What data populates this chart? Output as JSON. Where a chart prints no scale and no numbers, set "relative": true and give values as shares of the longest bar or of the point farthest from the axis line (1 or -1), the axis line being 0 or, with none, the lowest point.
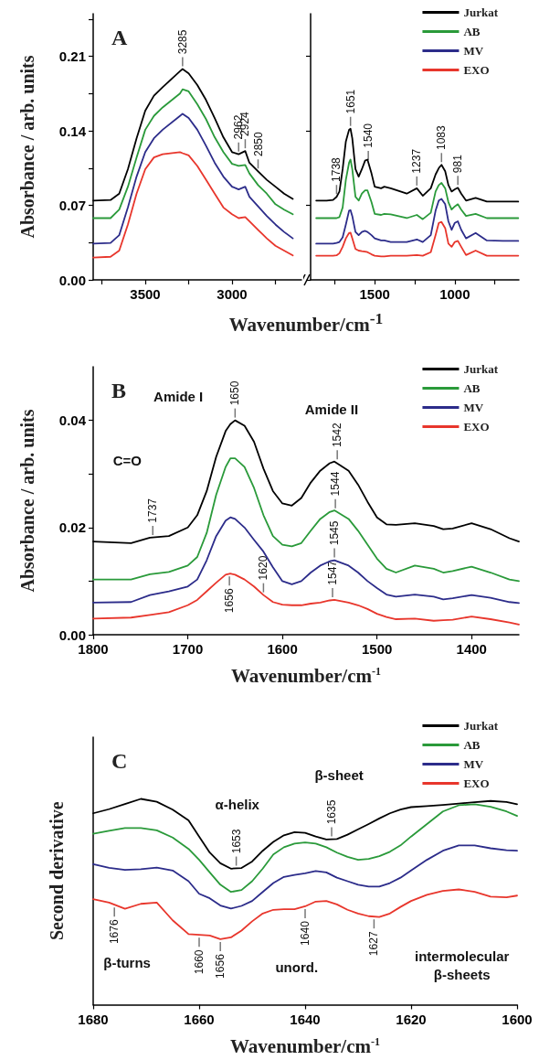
{
  "chart_data": [
    {
      "type": "line",
      "title": "A",
      "ylabel": "Absorbance / arb. units",
      "xlabel": "Wavenumber/cm$^{-1}$",
      "x": [
        3800,
        3700,
        3650,
        3600,
        3550,
        3500,
        3450,
        3400,
        3300,
        3285,
        3250,
        3200,
        3150,
        3100,
        3050,
        3000,
        2962,
        2924,
        2900,
        2850,
        2800,
        2750,
        2700,
        2650
      ],
      "series": [
        {
          "color": "#000000",
          "values": [
            0.0745,
            0.075,
            0.081,
            0.104,
            0.133,
            0.159,
            0.173,
            0.181,
            0.196,
            0.198,
            0.194,
            0.183,
            0.169,
            0.152,
            0.134,
            0.12,
            0.118,
            0.121,
            0.11,
            0.102,
            0.094,
            0.0875,
            0.081,
            0.076
          ]
        },
        {
          "color": "#2a9a3a",
          "values": [
            0.058,
            0.058,
            0.066,
            0.0875,
            0.115,
            0.141,
            0.154,
            0.162,
            0.175,
            0.179,
            0.177,
            0.165,
            0.151,
            0.134,
            0.12,
            0.109,
            0.107,
            0.108,
            0.1,
            0.089,
            0.081,
            0.071,
            0.066,
            0.0616
          ]
        },
        {
          "color": "#2c2c8a",
          "values": [
            0.034,
            0.0347,
            0.042,
            0.068,
            0.097,
            0.12,
            0.133,
            0.141,
            0.154,
            0.156,
            0.152,
            0.141,
            0.126,
            0.11,
            0.097,
            0.0875,
            0.085,
            0.0875,
            0.078,
            0.069,
            0.06,
            0.052,
            0.045,
            0.039
          ]
        },
        {
          "color": "#e8362c",
          "values": [
            0.021,
            0.0217,
            0.0275,
            0.052,
            0.081,
            0.104,
            0.115,
            0.118,
            0.12,
            0.119,
            0.117,
            0.107,
            0.094,
            0.081,
            0.068,
            0.0616,
            0.058,
            0.059,
            0.055,
            0.047,
            0.039,
            0.032,
            0.0275,
            0.023
          ]
        }
      ],
      "xlim": [
        3800,
        2600
      ],
      "xticks": [
        {
          "value": 3750,
          "label": null
        },
        3500,
        {
          "value": 3250,
          "label": null
        },
        3000,
        {
          "value": 2750,
          "label": null
        }
      ],
      "ylim": [
        0,
        0.25
      ],
      "yticks": [
        {
          "value": 0,
          "label": "0.00"
        },
        {
          "value": 0.035,
          "label": null
        },
        {
          "value": 0.07,
          "label": "0.07"
        },
        {
          "value": 0.105,
          "label": null
        },
        {
          "value": 0.14,
          "label": "0.14"
        },
        {
          "value": 0.175,
          "label": null
        },
        {
          "value": 0.21,
          "label": "0.21"
        },
        {
          "value": 0.245,
          "label": null
        }
      ],
      "annotations": [
        {
          "text": "3285",
          "x": 3285,
          "y": 0.198
        },
        {
          "text": "2962",
          "x": 2962,
          "y": 0.118
        },
        {
          "text": "2924",
          "x": 2924,
          "y": 0.121
        },
        {
          "text": "2850",
          "x": 2850,
          "y": 0.102
        }
      ]
    },
    {
      "type": "line",
      "x": [
        1865,
        1800,
        1760,
        1738,
        1720,
        1700,
        1680,
        1660,
        1651,
        1640,
        1620,
        1600,
        1580,
        1560,
        1545,
        1520,
        1500,
        1460,
        1440,
        1400,
        1300,
        1237,
        1200,
        1150,
        1120,
        1100,
        1083,
        1060,
        1040,
        1020,
        1000,
        981,
        960,
        930,
        870,
        800,
        700,
        604
      ],
      "series": [
        {
          "name": "Jurkat",
          "color": "#000000",
          "values": [
            0.0745,
            0.0745,
            0.075,
            0.078,
            0.083,
            0.104,
            0.13,
            0.141,
            0.142,
            0.133,
            0.104,
            0.097,
            0.104,
            0.112,
            0.113,
            0.1,
            0.0875,
            0.086,
            0.0875,
            0.086,
            0.081,
            0.086,
            0.079,
            0.086,
            0.099,
            0.105,
            0.108,
            0.102,
            0.089,
            0.083,
            0.085,
            0.0865,
            0.081,
            0.0745,
            0.077,
            0.0735,
            0.0735,
            0.0735
          ]
        },
        {
          "name": "AB",
          "color": "#2a9a3a",
          "values": [
            0.058,
            0.058,
            0.058,
            0.058,
            0.059,
            0.068,
            0.094,
            0.11,
            0.113,
            0.104,
            0.078,
            0.0745,
            0.081,
            0.084,
            0.084,
            0.073,
            0.062,
            0.061,
            0.062,
            0.0616,
            0.058,
            0.061,
            0.057,
            0.063,
            0.083,
            0.089,
            0.091,
            0.086,
            0.073,
            0.066,
            0.069,
            0.071,
            0.066,
            0.06,
            0.062,
            0.058,
            0.058,
            0.058
          ]
        },
        {
          "name": "MV",
          "color": "#2c2c8a",
          "values": [
            0.034,
            0.034,
            0.034,
            0.0347,
            0.0356,
            0.04,
            0.052,
            0.065,
            0.0655,
            0.06,
            0.045,
            0.042,
            0.045,
            0.046,
            0.045,
            0.042,
            0.039,
            0.037,
            0.037,
            0.0356,
            0.0356,
            0.038,
            0.0356,
            0.042,
            0.065,
            0.0745,
            0.076,
            0.071,
            0.055,
            0.047,
            0.0535,
            0.055,
            0.047,
            0.039,
            0.044,
            0.037,
            0.0366,
            0.0366
          ]
        },
        {
          "name": "EXO",
          "color": "#e8362c",
          "values": [
            0.0227,
            0.0227,
            0.0227,
            0.023,
            0.025,
            0.031,
            0.039,
            0.044,
            0.0444,
            0.039,
            0.029,
            0.0275,
            0.027,
            0.0266,
            0.026,
            0.024,
            0.0227,
            0.022,
            0.022,
            0.0227,
            0.0227,
            0.0233,
            0.0227,
            0.026,
            0.042,
            0.0535,
            0.0544,
            0.0486,
            0.034,
            0.031,
            0.0356,
            0.0366,
            0.031,
            0.0233,
            0.0275,
            0.0227,
            0.0227,
            0.0227
          ]
        }
      ],
      "xlim": [
        1900,
        600
      ],
      "xticks": [
        {
          "value": 1750,
          "label": null
        },
        1500,
        {
          "value": 1250,
          "label": null
        },
        1000,
        {
          "value": 750,
          "label": null
        }
      ],
      "ylim": [
        0,
        0.25
      ],
      "yticks": [
        {
          "value": 0,
          "label": null
        },
        {
          "value": 0.07,
          "label": null
        },
        {
          "value": 0.14,
          "label": null
        },
        {
          "value": 0.21,
          "label": null
        }
      ],
      "tick_labels": "x",
      "legend": "top right",
      "annotations": [
        {
          "text": "1738",
          "x": 1738,
          "y": 0.078
        },
        {
          "text": "1651",
          "x": 1651,
          "y": 0.142
        },
        {
          "text": "1540",
          "x": 1540,
          "y": 0.11
        },
        {
          "text": "1237",
          "x": 1237,
          "y": 0.086
        },
        {
          "text": "1083",
          "x": 1083,
          "y": 0.108
        },
        {
          "text": "981",
          "x": 981,
          "y": 0.0865
        }
      ]
    },
    {
      "type": "line",
      "title": "B",
      "ylabel": "Absorbance / arb. units",
      "xlabel": "Wavenumber/cm$^{-1}$",
      "x": [
        1800,
        1760,
        1740,
        1720,
        1700,
        1690,
        1680,
        1670,
        1660,
        1655,
        1650,
        1640,
        1630,
        1620,
        1610,
        1600,
        1590,
        1580,
        1570,
        1560,
        1550,
        1545,
        1530,
        1520,
        1510,
        1500,
        1490,
        1480,
        1460,
        1440,
        1430,
        1420,
        1400,
        1380,
        1360,
        1350
      ],
      "series": [
        {
          "name": "Jurkat",
          "color": "#000000",
          "values": [
            0.0174,
            0.0171,
            0.0181,
            0.0184,
            0.02,
            0.0223,
            0.0268,
            0.0332,
            0.038,
            0.0393,
            0.04,
            0.039,
            0.036,
            0.031,
            0.0268,
            0.0245,
            0.0241,
            0.0255,
            0.0284,
            0.0306,
            0.032,
            0.0323,
            0.0306,
            0.028,
            0.0248,
            0.0219,
            0.0206,
            0.0205,
            0.0208,
            0.0203,
            0.0197,
            0.0198,
            0.0208,
            0.0197,
            0.018,
            0.0174
          ]
        },
        {
          "name": "AB",
          "color": "#2a9a3a",
          "values": [
            0.0103,
            0.0103,
            0.0113,
            0.0117,
            0.0129,
            0.0145,
            0.019,
            0.0261,
            0.0313,
            0.0329,
            0.0329,
            0.0313,
            0.0274,
            0.0223,
            0.0184,
            0.0168,
            0.0165,
            0.0171,
            0.0194,
            0.0216,
            0.0229,
            0.0232,
            0.0216,
            0.0194,
            0.0168,
            0.0142,
            0.0123,
            0.0116,
            0.0129,
            0.0123,
            0.0116,
            0.0119,
            0.0127,
            0.0116,
            0.0103,
            0.01
          ]
        },
        {
          "name": "MV",
          "color": "#2c2c8a",
          "values": [
            0.006,
            0.0061,
            0.0074,
            0.0081,
            0.009,
            0.0103,
            0.0139,
            0.0184,
            0.0213,
            0.0219,
            0.0216,
            0.02,
            0.0177,
            0.0155,
            0.0126,
            0.01,
            0.0094,
            0.01,
            0.0116,
            0.0129,
            0.0137,
            0.0139,
            0.0129,
            0.0116,
            0.01,
            0.0087,
            0.0075,
            0.0071,
            0.0075,
            0.0071,
            0.0066,
            0.0068,
            0.0074,
            0.0069,
            0.0061,
            0.0059
          ]
        },
        {
          "name": "EXO",
          "color": "#e8362c",
          "values": [
            0.003,
            0.0032,
            0.0037,
            0.0042,
            0.0055,
            0.0065,
            0.0081,
            0.0097,
            0.0112,
            0.0114,
            0.0112,
            0.0103,
            0.009,
            0.0074,
            0.0061,
            0.0056,
            0.0055,
            0.0055,
            0.0058,
            0.006,
            0.0064,
            0.0065,
            0.006,
            0.0055,
            0.0048,
            0.0039,
            0.0033,
            0.0029,
            0.003,
            0.0026,
            0.0027,
            0.0028,
            0.0034,
            0.0029,
            0.0023,
            0.0019
          ]
        }
      ],
      "xlim": [
        1800,
        1350
      ],
      "xticks": [
        1800,
        1700,
        1600,
        1500,
        1400
      ],
      "ylim": [
        0,
        0.05
      ],
      "yticks": [
        {
          "value": 0,
          "label": "0.00"
        },
        {
          "value": 0.01,
          "label": null
        },
        {
          "value": 0.02,
          "label": "0.02"
        },
        {
          "value": 0.03,
          "label": null
        },
        {
          "value": 0.04,
          "label": "0.04"
        }
      ],
      "legend": "top right",
      "annotations": [
        "Amide I",
        {
          "text": "1650",
          "x": 1650,
          "y": 0.04
        },
        "Amide II",
        {
          "text": "1542",
          "x": 1542,
          "y": 0.0322
        },
        "C=O",
        {
          "text": "1737",
          "x": 1737,
          "y": 0.0181
        },
        {
          "text": "1544",
          "x": 1544,
          "y": 0.0231
        },
        {
          "text": "1545",
          "x": 1545,
          "y": 0.0139
        },
        {
          "text": "1620",
          "x": 1620,
          "y": 0.0074
        },
        {
          "text": "1547",
          "x": 1547,
          "y": 0.0065
        },
        {
          "text": "1656",
          "x": 1656,
          "y": 0.0114
        }
      ]
    },
    {
      "type": "line",
      "title": "C",
      "ylabel": "Second derivative",
      "xlabel": "Wavenumber/cm$^{-1}$",
      "relative": true,
      "x": [
        1680,
        1677,
        1674,
        1671,
        1668,
        1665,
        1662,
        1660,
        1658,
        1656,
        1654,
        1652,
        1650,
        1648,
        1646,
        1644,
        1642,
        1640,
        1638,
        1636,
        1634,
        1632,
        1630,
        1628,
        1626,
        1624,
        1622,
        1620,
        1617,
        1614,
        1611,
        1608,
        1605,
        1602,
        1600
      ],
      "series": [
        {
          "name": "Jurkat",
          "color": "#000000",
          "values": [
            0.93,
            0.95,
            0.975,
            1.0,
            0.986,
            0.948,
            0.896,
            0.817,
            0.739,
            0.687,
            0.661,
            0.664,
            0.696,
            0.748,
            0.791,
            0.823,
            0.838,
            0.835,
            0.817,
            0.803,
            0.805,
            0.826,
            0.852,
            0.878,
            0.905,
            0.93,
            0.948,
            0.96,
            0.965,
            0.971,
            0.977,
            0.984,
            0.99,
            0.985,
            0.974
          ]
        },
        {
          "name": "AB",
          "color": "#2a9a3a",
          "values": [
            0.831,
            0.845,
            0.858,
            0.858,
            0.847,
            0.812,
            0.757,
            0.704,
            0.643,
            0.583,
            0.548,
            0.557,
            0.6,
            0.661,
            0.73,
            0.765,
            0.783,
            0.788,
            0.783,
            0.765,
            0.739,
            0.718,
            0.704,
            0.708,
            0.722,
            0.743,
            0.774,
            0.817,
            0.878,
            0.939,
            0.969,
            0.974,
            0.962,
            0.939,
            0.917
          ]
        },
        {
          "name": "MV",
          "color": "#2c2c8a",
          "values": [
            0.683,
            0.665,
            0.655,
            0.658,
            0.666,
            0.652,
            0.6,
            0.539,
            0.517,
            0.482,
            0.467,
            0.48,
            0.504,
            0.548,
            0.591,
            0.621,
            0.631,
            0.638,
            0.649,
            0.643,
            0.617,
            0.6,
            0.583,
            0.574,
            0.574,
            0.591,
            0.617,
            0.652,
            0.704,
            0.748,
            0.774,
            0.774,
            0.76,
            0.751,
            0.748
          ]
        },
        {
          "name": "EXO",
          "color": "#e8362c",
          "values": [
            0.513,
            0.496,
            0.466,
            0.49,
            0.496,
            0.41,
            0.343,
            0.339,
            0.336,
            0.318,
            0.327,
            0.36,
            0.405,
            0.443,
            0.461,
            0.464,
            0.464,
            0.478,
            0.501,
            0.504,
            0.487,
            0.461,
            0.443,
            0.43,
            0.426,
            0.443,
            0.475,
            0.504,
            0.534,
            0.553,
            0.56,
            0.548,
            0.525,
            0.522,
            0.53
          ]
        }
      ],
      "xlim": [
        1680,
        1600
      ],
      "xticks": [
        1680,
        1660,
        1640,
        1620,
        1600
      ],
      "legend": "top right",
      "annotations": [
        "α-helix",
        "β-sheet",
        {
          "text": "1653",
          "x": 1653,
          "y": 0.662
        },
        {
          "text": "1635",
          "x": 1635,
          "y": 0.804
        },
        {
          "text": "1676",
          "x": 1676,
          "y": 0.486
        },
        "β-turns",
        {
          "text": "1660",
          "x": 1660,
          "y": 0.339
        },
        {
          "text": "1656",
          "x": 1656,
          "y": 0.318
        },
        {
          "text": "1640",
          "x": 1640,
          "y": 0.478
        },
        "unord.",
        {
          "text": "1627",
          "x": 1627,
          "y": 0.428
        },
        "intermolecular\nβ-sheets"
      ]
    }
  ]
}
